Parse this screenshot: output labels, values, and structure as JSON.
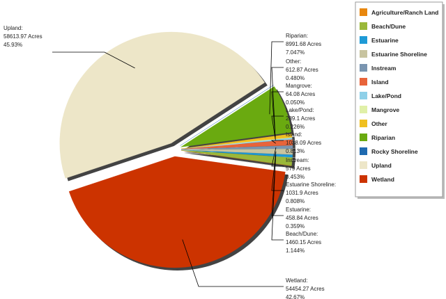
{
  "chart_data": {
    "type": "pie",
    "categories": [
      "Agriculture/Ranch Land",
      "Beach/Dune",
      "Estuarine",
      "Estuarine Shoreline",
      "Instream",
      "Island",
      "Lake/Pond",
      "Mangrove",
      "Other",
      "Riparian",
      "Rocky Shoreline",
      "Upland",
      "Wetland"
    ],
    "colors": [
      "#e8870e",
      "#9ab83a",
      "#1e9ad6",
      "#c8c4a0",
      "#7a95b0",
      "#e8643a",
      "#8fd0e8",
      "#e0f0a8",
      "#f0c020",
      "#6aaa10",
      "#1f6ab0",
      "#ede6c8",
      "#cc3300"
    ],
    "values": [
      14,
      1460.15,
      458.84,
      1031.9,
      579,
      1038.09,
      289.1,
      64.08,
      612.87,
      8991.68,
      8,
      58613.97,
      54454.27
    ],
    "value_labels": [
      null,
      "1460.15 Acres",
      "458.84 Acres",
      "1031.9 Acres",
      "579 Acres",
      "1038.09 Acres",
      "289.1 Acres",
      "64.08 Acres",
      "612.87 Acres",
      "8991.68 Acres",
      null,
      "58613.97 Acres",
      "54454.27 Acres"
    ],
    "percents": [
      null,
      1.144,
      0.359,
      0.808,
      0.453,
      0.813,
      0.226,
      0.05,
      0.48,
      7.047,
      null,
      45.93,
      42.67
    ],
    "percent_labels": [
      null,
      "1.144%",
      "0.359%",
      "0.808%",
      "0.453%",
      "0.813%",
      "0.226%",
      "0.050%",
      "0.480%",
      "7.047%",
      null,
      "45.93%",
      "42.67%"
    ],
    "callout_labels": [
      null,
      "Beach/Dune:",
      "Estuarine:",
      "Estuarine Shoreline:",
      "Instream:",
      "Island:",
      "Lake/Pond:",
      "Mangrove:",
      "Other:",
      "Riparian:",
      null,
      "Upland:",
      "Wetland:"
    ],
    "legend": "top-right"
  }
}
